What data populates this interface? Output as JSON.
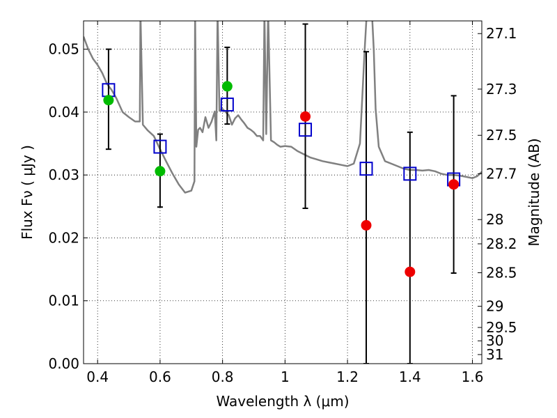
{
  "chart_data": {
    "type": "scatter",
    "title": "",
    "xlabel": "Wavelength  λ (μm)",
    "ylabel": "Flux  Fν  ( μJy )",
    "y2label": "Magnitude (AB)",
    "xlim": [
      0.355,
      1.63
    ],
    "ylim": [
      0.0,
      0.0545
    ],
    "grid": true,
    "x_ticks": [
      0.4,
      0.6,
      0.8,
      1.0,
      1.2,
      1.4,
      1.6
    ],
    "x_tick_labels": [
      "0.4",
      "0.6",
      "0.8",
      "1",
      "1.2",
      "1.4",
      "1.6"
    ],
    "y_ticks": [
      0.0,
      0.01,
      0.02,
      0.03,
      0.04,
      0.05
    ],
    "y_tick_labels": [
      "0.00",
      "0.01",
      "0.02",
      "0.03",
      "0.04",
      "0.05"
    ],
    "y2_ticks": [
      "27.1",
      "27.3",
      "27.5",
      "27.7",
      "28",
      "28.2",
      "28.5",
      "29",
      "29.5",
      "30",
      "31"
    ],
    "colors": {
      "template": "#808080",
      "model": "#0000cc",
      "green": "#00bb00",
      "red": "#ee0000",
      "errorbar": "#000000"
    },
    "series": [
      {
        "kind": "model-boxes",
        "x": [
          0.435,
          0.6,
          0.815,
          1.065,
          1.26,
          1.4,
          1.54
        ],
        "y": [
          0.0435,
          0.0345,
          0.0412,
          0.0372,
          0.031,
          0.0302,
          0.0293
        ]
      },
      {
        "kind": "observed-points-green",
        "x": [
          0.435,
          0.6,
          0.815
        ],
        "y": [
          0.0419,
          0.0306,
          0.0441
        ],
        "err_low": [
          0.0341,
          0.0249,
          0.0381
        ],
        "err_high": [
          0.05,
          0.0365,
          0.0503
        ]
      },
      {
        "kind": "observed-points-red",
        "x": [
          1.065,
          1.26,
          1.4,
          1.54
        ],
        "y": [
          0.0393,
          0.022,
          0.0146,
          0.0285
        ],
        "err_low": [
          0.0247,
          0.0,
          0.0,
          0.0144
        ],
        "err_high": [
          0.054,
          0.0496,
          0.0368,
          0.0426
        ]
      },
      {
        "kind": "template-spectrum",
        "x": [
          0.355,
          0.37,
          0.385,
          0.4,
          0.415,
          0.43,
          0.445,
          0.46,
          0.48,
          0.5,
          0.52,
          0.535,
          0.537,
          0.545,
          0.56,
          0.58,
          0.6,
          0.62,
          0.64,
          0.66,
          0.68,
          0.7,
          0.71,
          0.712,
          0.716,
          0.722,
          0.728,
          0.736,
          0.745,
          0.755,
          0.765,
          0.775,
          0.78,
          0.784,
          0.79,
          0.8,
          0.81,
          0.82,
          0.83,
          0.84,
          0.85,
          0.86,
          0.87,
          0.88,
          0.89,
          0.9,
          0.91,
          0.92,
          0.93,
          0.934,
          0.94,
          0.946,
          0.955,
          0.965,
          0.975,
          0.985,
          1.0,
          1.02,
          1.04,
          1.06,
          1.08,
          1.1,
          1.12,
          1.14,
          1.16,
          1.18,
          1.2,
          1.22,
          1.24,
          1.255,
          1.262,
          1.266,
          1.272,
          1.278,
          1.284,
          1.29,
          1.3,
          1.32,
          1.34,
          1.36,
          1.38,
          1.4,
          1.42,
          1.44,
          1.46,
          1.48,
          1.5,
          1.52,
          1.54,
          1.56,
          1.58,
          1.6,
          1.615,
          1.63
        ],
        "y": [
          0.052,
          0.05,
          0.0485,
          0.0475,
          0.0462,
          0.0445,
          0.0435,
          0.0422,
          0.04,
          0.0392,
          0.0385,
          0.0385,
          0.056,
          0.038,
          0.0371,
          0.0362,
          0.0341,
          0.0321,
          0.0302,
          0.0285,
          0.0272,
          0.0275,
          0.029,
          0.056,
          0.0345,
          0.0372,
          0.0375,
          0.0368,
          0.0392,
          0.0375,
          0.0385,
          0.0401,
          0.0355,
          0.056,
          0.0402,
          0.0405,
          0.04,
          0.0395,
          0.038,
          0.039,
          0.0395,
          0.0388,
          0.0382,
          0.0375,
          0.0372,
          0.0368,
          0.0362,
          0.0362,
          0.0355,
          0.056,
          0.0365,
          0.056,
          0.0355,
          0.0352,
          0.0348,
          0.0345,
          0.0346,
          0.0345,
          0.0338,
          0.0333,
          0.0328,
          0.0325,
          0.0322,
          0.032,
          0.0318,
          0.0316,
          0.0314,
          0.0318,
          0.035,
          0.05,
          0.056,
          0.056,
          0.056,
          0.056,
          0.05,
          0.0405,
          0.0345,
          0.0322,
          0.0318,
          0.0314,
          0.031,
          0.0308,
          0.0308,
          0.0307,
          0.0308,
          0.0306,
          0.0302,
          0.03,
          0.03,
          0.0299,
          0.0297,
          0.0295,
          0.0298,
          0.0305
        ]
      }
    ]
  }
}
